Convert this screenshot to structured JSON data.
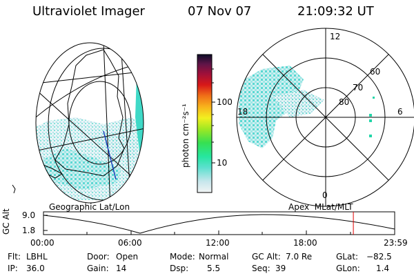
{
  "header": {
    "instrument": "Ultraviolet Imager",
    "date": "07 Nov 07",
    "time": "21:09:32 UT"
  },
  "colorbar": {
    "unit_label": "photon cm⁻²s⁻¹",
    "ticks": [
      "100",
      "10"
    ]
  },
  "left_map": {
    "caption": "Geographic Lat/Lon"
  },
  "right_map": {
    "caption": "Apex  MLat/MLT",
    "clock_labels": {
      "top": "12",
      "left": "18",
      "right": "6",
      "bottom": "0"
    },
    "lat_labels": [
      "60",
      "70",
      "80"
    ]
  },
  "alt_plot": {
    "ylabel": "GC Alt",
    "y_ticks": [
      "9.0",
      "1.8"
    ],
    "x_ticks": [
      "00:00",
      "06:00",
      "12:00",
      "18:00",
      "23:59"
    ],
    "current_time_marker_hours": 21.16,
    "marker_color": "#e00000"
  },
  "info": {
    "flt_label": "Flt:",
    "flt_value": "LBHL",
    "ip_label": "IP:",
    "ip_value": "36.0",
    "door_label": "Door:",
    "door_value": "Open",
    "gain_label": "Gain:",
    "gain_value": "14",
    "mode_label": "Mode:",
    "mode_value": "Normal",
    "dsp_label": "Dsp:",
    "dsp_value": "5.5",
    "gcalt_label": "GC Alt:",
    "gcalt_value": "7.0 Re",
    "seq_label": "Seq:",
    "seq_value": "39",
    "glat_label": "GLat:",
    "glat_value": "−82.5",
    "glon_label": "GLon:",
    "glon_value": "1.4"
  }
}
